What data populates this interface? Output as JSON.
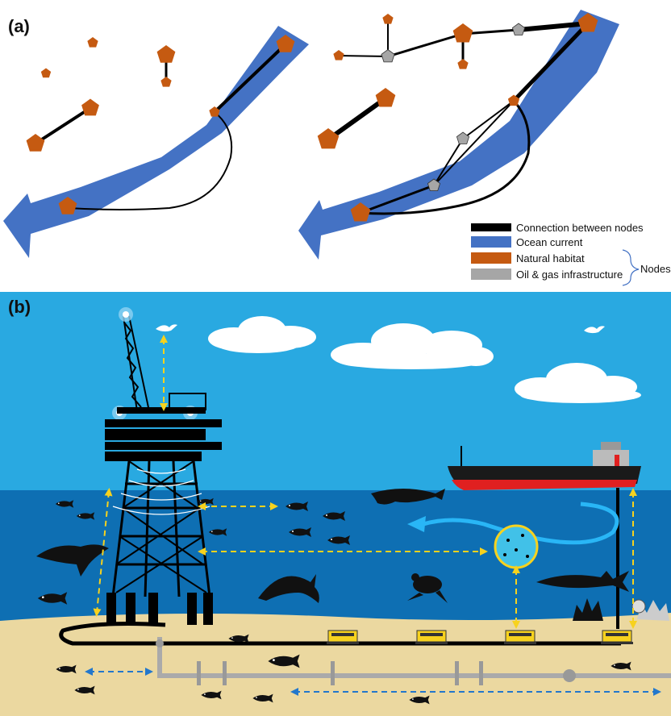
{
  "panel_a": {
    "label": "(a)",
    "legend": {
      "items": [
        {
          "label": "Connection between nodes",
          "color": "#000000"
        },
        {
          "label": "Ocean current",
          "color": "#4472C4"
        },
        {
          "label": "Natural habitat",
          "color": "#C55A11"
        },
        {
          "label": "Oil & gas infrastructure",
          "color": "#A6A6A6"
        }
      ],
      "group_label": "Nodes"
    }
  },
  "panel_b": {
    "label": "(b)"
  },
  "colors": {
    "ocean_current": "#4472C4",
    "habitat": "#C55A11",
    "infrastructure": "#A6A6A6",
    "sky": "#29A9E1",
    "sea": "#0E6FB3",
    "sand": "#EBD8A0",
    "arrow_yellow": "#F7D21E",
    "arrow_blue": "#2277CC"
  }
}
